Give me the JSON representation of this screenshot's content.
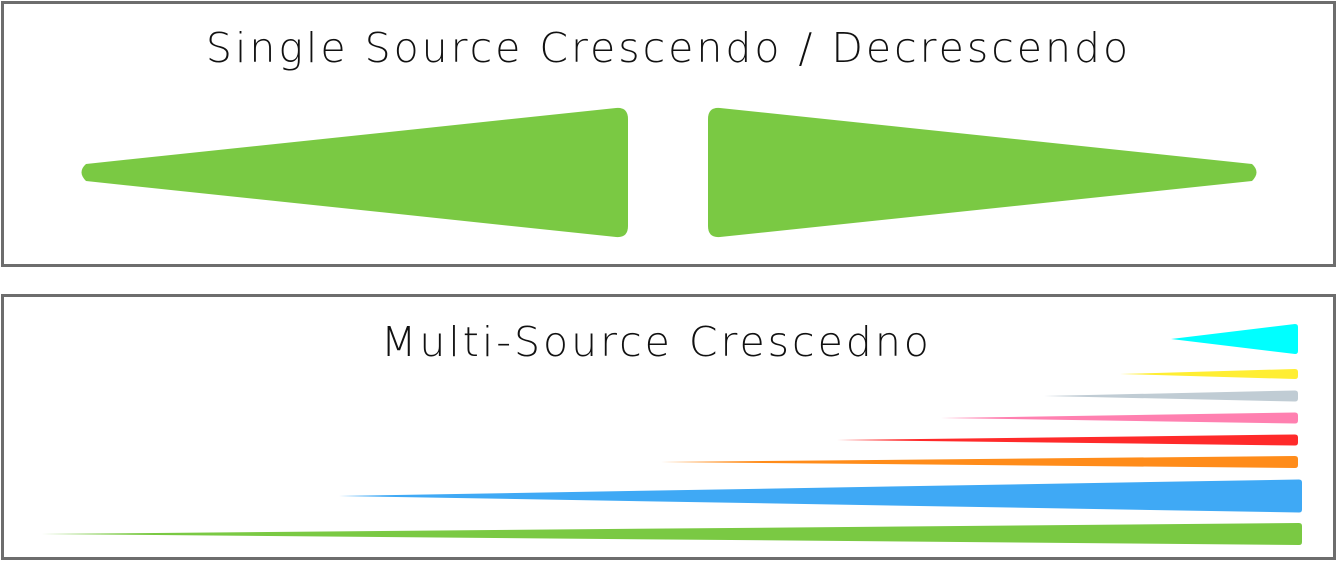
{
  "single_source": {
    "title": "Single Source Crescendo / Decrescendo",
    "shapes": [
      {
        "name": "crescendo",
        "color": "#7ac943"
      },
      {
        "name": "decrescendo",
        "color": "#7ac943"
      }
    ]
  },
  "multi_source": {
    "title": "Multi-Source Crescedno",
    "wedges": [
      {
        "color": "#00ffff"
      },
      {
        "color": "#ffee33"
      },
      {
        "color": "#c0ccd4"
      },
      {
        "color": "#ff80b0"
      },
      {
        "color": "#ff2a2a"
      },
      {
        "color": "#ff8c1a"
      },
      {
        "color": "#3fa9f5"
      },
      {
        "color": "#7ac943"
      }
    ]
  }
}
